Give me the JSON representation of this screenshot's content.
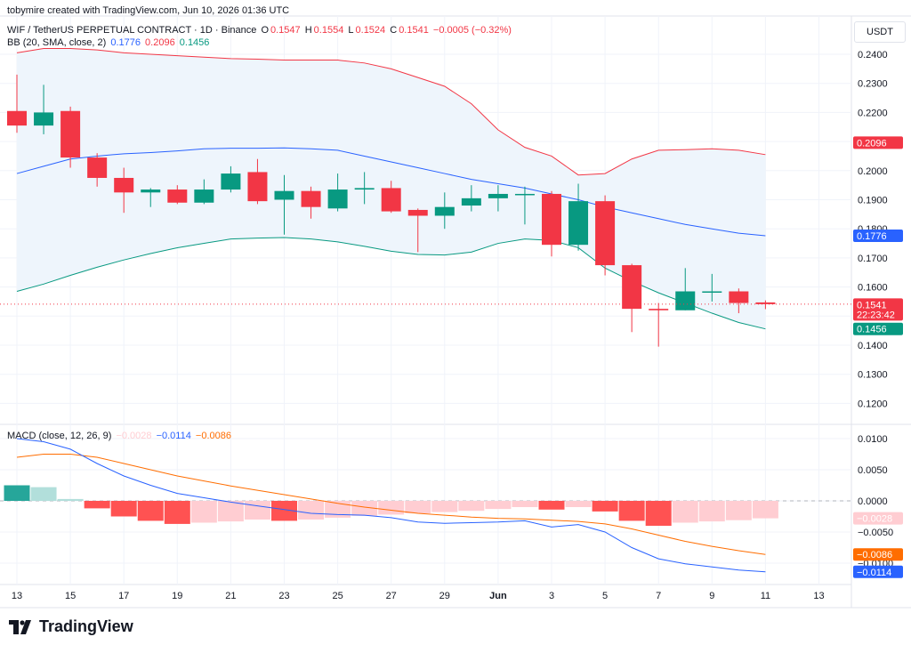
{
  "attribution": "tobymire created with TradingView.com, Jun 10, 2026 01:36 UTC",
  "currency_button": "USDT",
  "symbol_line": {
    "title": "WIF / TetherUS PERPETUAL CONTRACT · 1D · Binance",
    "open_label": "O",
    "open": "0.1547",
    "high_label": "H",
    "high": "0.1554",
    "low_label": "L",
    "low": "0.1524",
    "close_label": "C",
    "close": "0.1541",
    "change": "−0.0005 (−0.32%)"
  },
  "bb_line": {
    "label": "BB (20, SMA, close, 2)",
    "basis": "0.1776",
    "upper": "0.2096",
    "lower": "0.1456"
  },
  "macd_line": {
    "label": "MACD (close, 12, 26, 9)",
    "hist": "−0.0028",
    "macd": "−0.0114",
    "signal": "−0.0086"
  },
  "logo_text": "TradingView",
  "colors": {
    "up": "#089981",
    "down": "#f23645",
    "bb_basis": "#2962ff",
    "bb_upper": "#f23645",
    "bb_lower": "#089981",
    "bb_fill": "#eef5fc",
    "macd": "#2962ff",
    "signal": "#ff6d00",
    "hist_up_strong": "#26a69a",
    "hist_up_weak": "#b2dfdb",
    "hist_down_strong": "#ff5252",
    "hist_down_weak": "#ffcdd2",
    "countdown_tag": "#f23645"
  },
  "price_tags": {
    "upper": "0.2096",
    "basis": "0.1776",
    "last": "0.1541",
    "countdown": "22:23:42",
    "lower": "0.1456"
  },
  "macd_tags": {
    "hist": "−0.0028",
    "signal": "−0.0086",
    "macd": "−0.0114"
  },
  "chart_data": [
    {
      "type": "candlestick",
      "x_ticks": [
        "13",
        "15",
        "17",
        "19",
        "21",
        "23",
        "25",
        "27",
        "29",
        "Jun",
        "3",
        "5",
        "7",
        "9",
        "11",
        "13"
      ],
      "y_ticks": [
        "0.2400",
        "0.2300",
        "0.2200",
        "0.2100",
        "0.2000",
        "0.1900",
        "0.1800",
        "0.1700",
        "0.1600",
        "0.1500",
        "0.1400",
        "0.1300",
        "0.1200"
      ],
      "candles": [
        {
          "o": 0.2205,
          "h": 0.233,
          "l": 0.213,
          "c": 0.2155
        },
        {
          "o": 0.2155,
          "h": 0.2295,
          "l": 0.2125,
          "c": 0.22
        },
        {
          "o": 0.2205,
          "h": 0.222,
          "l": 0.201,
          "c": 0.2045
        },
        {
          "o": 0.2045,
          "h": 0.206,
          "l": 0.1945,
          "c": 0.1975
        },
        {
          "o": 0.1975,
          "h": 0.201,
          "l": 0.1855,
          "c": 0.1925
        },
        {
          "o": 0.1925,
          "h": 0.194,
          "l": 0.1875,
          "c": 0.1935
        },
        {
          "o": 0.1935,
          "h": 0.195,
          "l": 0.1885,
          "c": 0.189
        },
        {
          "o": 0.189,
          "h": 0.197,
          "l": 0.1885,
          "c": 0.1935
        },
        {
          "o": 0.1935,
          "h": 0.2015,
          "l": 0.1925,
          "c": 0.199
        },
        {
          "o": 0.1995,
          "h": 0.204,
          "l": 0.1885,
          "c": 0.1895
        },
        {
          "o": 0.19,
          "h": 0.1985,
          "l": 0.178,
          "c": 0.193
        },
        {
          "o": 0.193,
          "h": 0.1945,
          "l": 0.1835,
          "c": 0.1875
        },
        {
          "o": 0.187,
          "h": 0.199,
          "l": 0.186,
          "c": 0.1935
        },
        {
          "o": 0.1935,
          "h": 0.1995,
          "l": 0.1885,
          "c": 0.194
        },
        {
          "o": 0.194,
          "h": 0.1965,
          "l": 0.1855,
          "c": 0.186
        },
        {
          "o": 0.1865,
          "h": 0.187,
          "l": 0.172,
          "c": 0.1845
        },
        {
          "o": 0.1845,
          "h": 0.1925,
          "l": 0.18,
          "c": 0.1875
        },
        {
          "o": 0.188,
          "h": 0.195,
          "l": 0.186,
          "c": 0.1905
        },
        {
          "o": 0.1905,
          "h": 0.195,
          "l": 0.186,
          "c": 0.192
        },
        {
          "o": 0.192,
          "h": 0.1945,
          "l": 0.1815,
          "c": 0.192
        },
        {
          "o": 0.192,
          "h": 0.193,
          "l": 0.1705,
          "c": 0.1745
        },
        {
          "o": 0.1745,
          "h": 0.1955,
          "l": 0.1725,
          "c": 0.1895
        },
        {
          "o": 0.1895,
          "h": 0.1915,
          "l": 0.164,
          "c": 0.1675
        },
        {
          "o": 0.1675,
          "h": 0.168,
          "l": 0.1445,
          "c": 0.1525
        },
        {
          "o": 0.1525,
          "h": 0.1545,
          "l": 0.1395,
          "c": 0.152
        },
        {
          "o": 0.152,
          "h": 0.1665,
          "l": 0.152,
          "c": 0.1585
        },
        {
          "o": 0.1585,
          "h": 0.1645,
          "l": 0.155,
          "c": 0.1585
        },
        {
          "o": 0.1585,
          "h": 0.1595,
          "l": 0.151,
          "c": 0.1545
        },
        {
          "o": 0.1547,
          "h": 0.1554,
          "l": 0.1524,
          "c": 0.1541
        }
      ],
      "bb_upper": [
        0.2405,
        0.242,
        0.242,
        0.2415,
        0.2405,
        0.24,
        0.2395,
        0.239,
        0.2385,
        0.2383,
        0.238,
        0.238,
        0.238,
        0.237,
        0.235,
        0.232,
        0.229,
        0.223,
        0.214,
        0.208,
        0.205,
        0.1985,
        0.199,
        0.204,
        0.207,
        0.2072,
        0.2075,
        0.207,
        0.2055
      ],
      "bb_basis": [
        0.199,
        0.2015,
        0.204,
        0.205,
        0.2058,
        0.2062,
        0.2068,
        0.2075,
        0.2077,
        0.2077,
        0.2078,
        0.2075,
        0.207,
        0.205,
        0.203,
        0.201,
        0.199,
        0.197,
        0.1955,
        0.194,
        0.192,
        0.19,
        0.1875,
        0.1855,
        0.1835,
        0.1815,
        0.18,
        0.1785,
        0.1776
      ],
      "bb_lower": [
        0.1585,
        0.161,
        0.164,
        0.1668,
        0.1693,
        0.1715,
        0.1735,
        0.175,
        0.1765,
        0.1768,
        0.177,
        0.1765,
        0.1755,
        0.174,
        0.1723,
        0.1712,
        0.171,
        0.172,
        0.175,
        0.1765,
        0.176,
        0.1735,
        0.1665,
        0.162,
        0.158,
        0.1545,
        0.151,
        0.1478,
        0.1456
      ]
    },
    {
      "type": "bar",
      "name": "MACD",
      "y_ticks": [
        "0.0100",
        "0.0050",
        "0.0000",
        "−0.0050",
        "−0.0100"
      ],
      "histogram": [
        0.0025,
        0.0022,
        0.0003,
        -0.0012,
        -0.0025,
        -0.0032,
        -0.0037,
        -0.0035,
        -0.0033,
        -0.003,
        -0.0032,
        -0.003,
        -0.0027,
        -0.0024,
        -0.0022,
        -0.002,
        -0.0018,
        -0.0016,
        -0.0013,
        -0.001,
        -0.0014,
        -0.001,
        -0.0017,
        -0.0032,
        -0.004,
        -0.0035,
        -0.0033,
        -0.0031,
        -0.0028
      ],
      "macd": [
        0.01,
        0.0095,
        0.0083,
        0.006,
        0.004,
        0.0025,
        0.0012,
        0.0005,
        -0.0002,
        -0.0008,
        -0.0014,
        -0.002,
        -0.0022,
        -0.0023,
        -0.0027,
        -0.0034,
        -0.0036,
        -0.0035,
        -0.0034,
        -0.0032,
        -0.0042,
        -0.0038,
        -0.005,
        -0.0075,
        -0.0093,
        -0.0101,
        -0.0106,
        -0.0111,
        -0.0114
      ],
      "signal": [
        0.007,
        0.0075,
        0.0075,
        0.007,
        0.006,
        0.005,
        0.004,
        0.0032,
        0.0024,
        0.0017,
        0.001,
        0.0003,
        -0.0004,
        -0.001,
        -0.0015,
        -0.002,
        -0.0023,
        -0.0026,
        -0.0028,
        -0.0029,
        -0.0031,
        -0.0033,
        -0.0037,
        -0.0045,
        -0.0055,
        -0.0065,
        -0.0073,
        -0.008,
        -0.0086
      ]
    }
  ]
}
